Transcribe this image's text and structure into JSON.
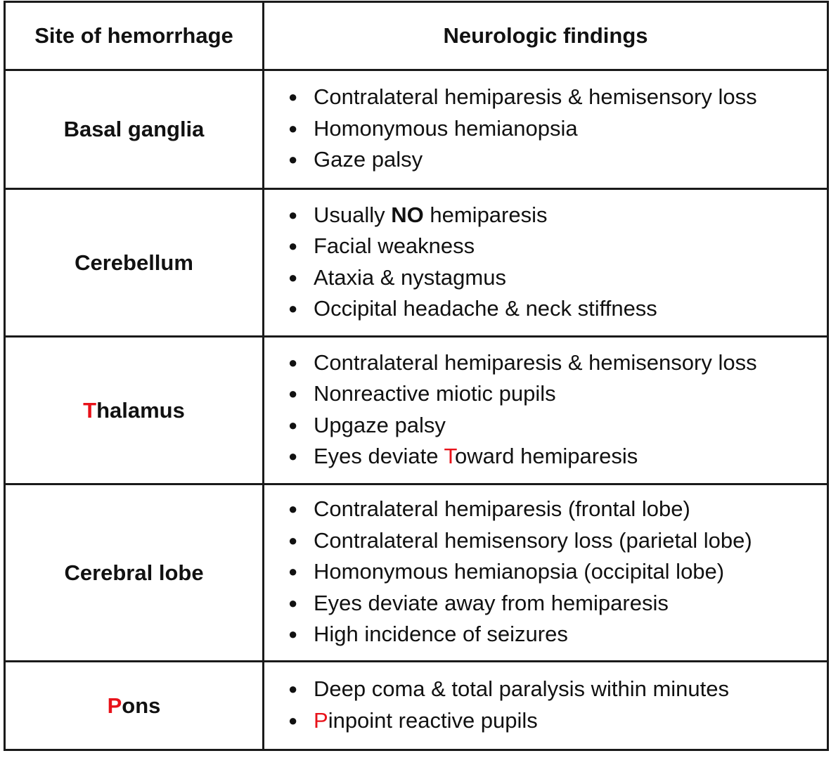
{
  "header": {
    "site": "Site of hemorrhage",
    "findings": "Neurologic findings"
  },
  "bullet_glyph": "●",
  "colors": {
    "highlight": "#e8121a",
    "border": "#1a1a1a"
  },
  "rows": [
    {
      "site": "Basal ganglia",
      "findings": [
        "Contralateral hemiparesis & hemisensory loss",
        "Homonymous hemianopsia",
        "Gaze palsy"
      ]
    },
    {
      "site": "Cerebellum",
      "findings": [
        {
          "before": "Usually ",
          "bold": "NO",
          "after": " hemiparesis"
        },
        "Facial weakness",
        "Ataxia & nystagmus",
        "Occipital headache & neck stiffness"
      ]
    },
    {
      "site": {
        "highlight": "T",
        "rest": "halamus"
      },
      "findings": [
        "Contralateral hemiparesis & hemisensory loss",
        "Nonreactive miotic pupils",
        "Upgaze palsy",
        {
          "before": "Eyes deviate ",
          "highlight": "T",
          "after": "oward hemiparesis"
        }
      ]
    },
    {
      "site": "Cerebral lobe",
      "findings": [
        "Contralateral hemiparesis (frontal lobe)",
        "Contralateral hemisensory loss (parietal lobe)",
        "Homonymous hemianopsia (occipital lobe)",
        "Eyes deviate away from hemiparesis",
        "High incidence of seizures"
      ]
    },
    {
      "site": {
        "highlight": "P",
        "rest": "ons"
      },
      "findings": [
        "Deep coma & total paralysis within minutes",
        {
          "before": "",
          "highlight": "P",
          "after": "inpoint reactive pupils"
        }
      ]
    }
  ]
}
